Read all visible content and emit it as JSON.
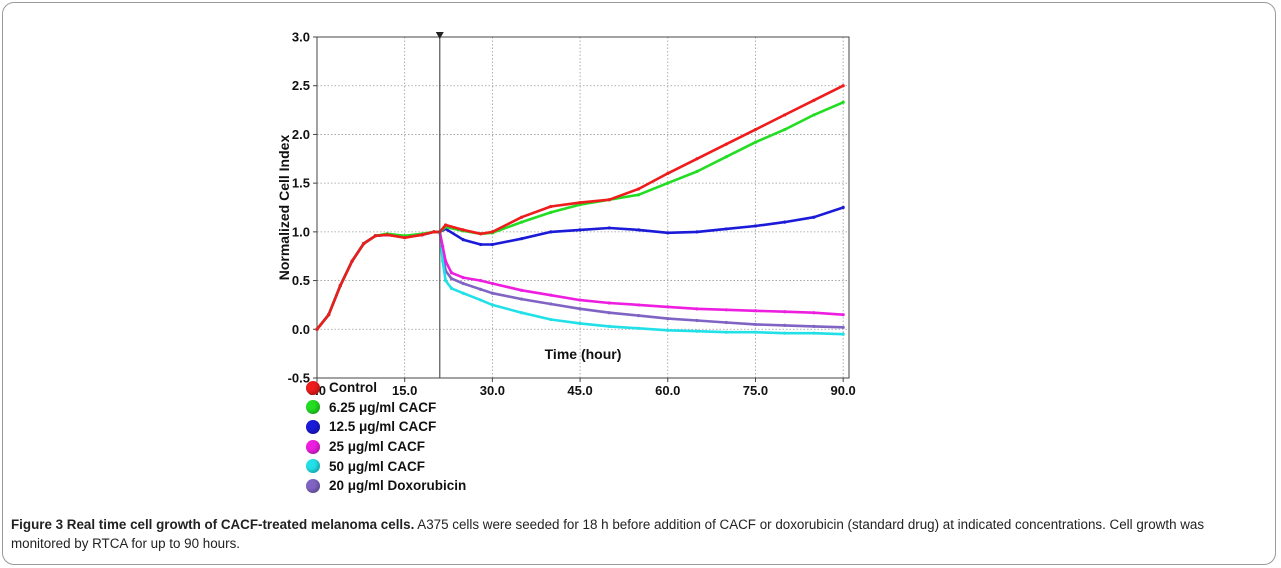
{
  "chart_data": {
    "type": "line",
    "xlabel": "Time (hour)",
    "ylabel": "Normalized Cell Index",
    "xlim": [
      0,
      91
    ],
    "ylim": [
      -0.5,
      3.0
    ],
    "xticks": [
      "0.0",
      "15.0",
      "30.0",
      "45.0",
      "60.0",
      "75.0",
      "90.0"
    ],
    "yticks": [
      "-0.5",
      "0.0",
      "0.5",
      "1.0",
      "1.5",
      "2.0",
      "2.5",
      "3.0"
    ],
    "grid": true,
    "legend_position": "bottom-left",
    "vertical_marker_x": 21,
    "series": [
      {
        "name": "Control",
        "color": "#ee1c1c",
        "x": [
          0,
          2,
          4,
          6,
          8,
          10,
          12,
          15,
          18,
          20,
          21,
          22,
          25,
          28,
          30,
          35,
          40,
          45,
          50,
          55,
          60,
          65,
          70,
          75,
          80,
          85,
          90
        ],
        "y": [
          0,
          0.15,
          0.45,
          0.7,
          0.88,
          0.96,
          0.97,
          0.94,
          0.97,
          1.0,
          1.0,
          1.07,
          1.02,
          0.98,
          1.0,
          1.15,
          1.26,
          1.3,
          1.33,
          1.44,
          1.6,
          1.75,
          1.9,
          2.05,
          2.2,
          2.35,
          2.5
        ]
      },
      {
        "name": "6.25 μg/ml CACF",
        "color": "#22dd22",
        "x": [
          0,
          2,
          4,
          6,
          8,
          10,
          12,
          15,
          18,
          20,
          21,
          22,
          25,
          28,
          30,
          35,
          40,
          45,
          50,
          55,
          60,
          65,
          70,
          75,
          80,
          85,
          90
        ],
        "y": [
          0,
          0.15,
          0.45,
          0.7,
          0.88,
          0.96,
          0.98,
          0.96,
          0.98,
          1.0,
          1.0,
          1.05,
          1.01,
          0.98,
          0.99,
          1.1,
          1.2,
          1.28,
          1.33,
          1.38,
          1.5,
          1.62,
          1.77,
          1.92,
          2.05,
          2.2,
          2.33
        ]
      },
      {
        "name": "12.5 μg/ml CACF",
        "color": "#1a1ad8",
        "x": [
          0,
          2,
          4,
          6,
          8,
          10,
          12,
          15,
          18,
          20,
          21,
          22,
          25,
          28,
          30,
          35,
          40,
          45,
          50,
          55,
          60,
          65,
          70,
          75,
          80,
          85,
          90
        ],
        "y": [
          0,
          0.15,
          0.45,
          0.7,
          0.88,
          0.96,
          0.97,
          0.95,
          0.97,
          1.0,
          1.0,
          1.03,
          0.92,
          0.87,
          0.87,
          0.93,
          1.0,
          1.02,
          1.04,
          1.02,
          0.99,
          1.0,
          1.03,
          1.06,
          1.1,
          1.15,
          1.25
        ]
      },
      {
        "name": "25 μg/ml CACF",
        "color": "#ee1ee0",
        "x": [
          0,
          2,
          4,
          6,
          8,
          10,
          12,
          15,
          18,
          20,
          21,
          21.5,
          22,
          23,
          25,
          28,
          30,
          35,
          40,
          45,
          50,
          55,
          60,
          65,
          70,
          75,
          80,
          85,
          90
        ],
        "y": [
          0,
          0.15,
          0.45,
          0.7,
          0.88,
          0.96,
          0.97,
          0.95,
          0.97,
          1.0,
          1.0,
          0.85,
          0.7,
          0.58,
          0.53,
          0.5,
          0.47,
          0.4,
          0.35,
          0.3,
          0.27,
          0.25,
          0.23,
          0.21,
          0.2,
          0.19,
          0.18,
          0.17,
          0.15
        ]
      },
      {
        "name": "50 μg/ml CACF",
        "color": "#22e0e8",
        "x": [
          0,
          2,
          4,
          6,
          8,
          10,
          12,
          15,
          18,
          20,
          21,
          21.5,
          22,
          23,
          25,
          28,
          30,
          35,
          40,
          45,
          50,
          55,
          60,
          65,
          70,
          75,
          80,
          85,
          90
        ],
        "y": [
          0,
          0.15,
          0.45,
          0.7,
          0.88,
          0.96,
          0.97,
          0.95,
          0.97,
          1.0,
          1.0,
          0.7,
          0.5,
          0.42,
          0.37,
          0.3,
          0.25,
          0.17,
          0.1,
          0.06,
          0.03,
          0.01,
          -0.01,
          -0.02,
          -0.03,
          -0.03,
          -0.04,
          -0.04,
          -0.05
        ]
      },
      {
        "name": "20 μg/ml Doxorubicin",
        "color": "#7f64c4",
        "x": [
          0,
          2,
          4,
          6,
          8,
          10,
          12,
          15,
          18,
          20,
          21,
          21.5,
          22,
          23,
          25,
          28,
          30,
          35,
          40,
          45,
          50,
          55,
          60,
          65,
          70,
          75,
          80,
          85,
          90
        ],
        "y": [
          0,
          0.15,
          0.45,
          0.7,
          0.88,
          0.96,
          0.97,
          0.95,
          0.97,
          1.0,
          1.0,
          0.8,
          0.6,
          0.52,
          0.47,
          0.41,
          0.37,
          0.31,
          0.26,
          0.21,
          0.17,
          0.14,
          0.11,
          0.09,
          0.07,
          0.05,
          0.04,
          0.03,
          0.02
        ]
      }
    ]
  },
  "caption": {
    "title": "Figure 3 Real time cell growth of CACF-treated melanoma cells.",
    "text": " A375 cells were seeded for 18 h before addition of CACF or doxorubicin (standard drug) at indicated concentrations. Cell growth was monitored by RTCA for up to 90 hours."
  }
}
